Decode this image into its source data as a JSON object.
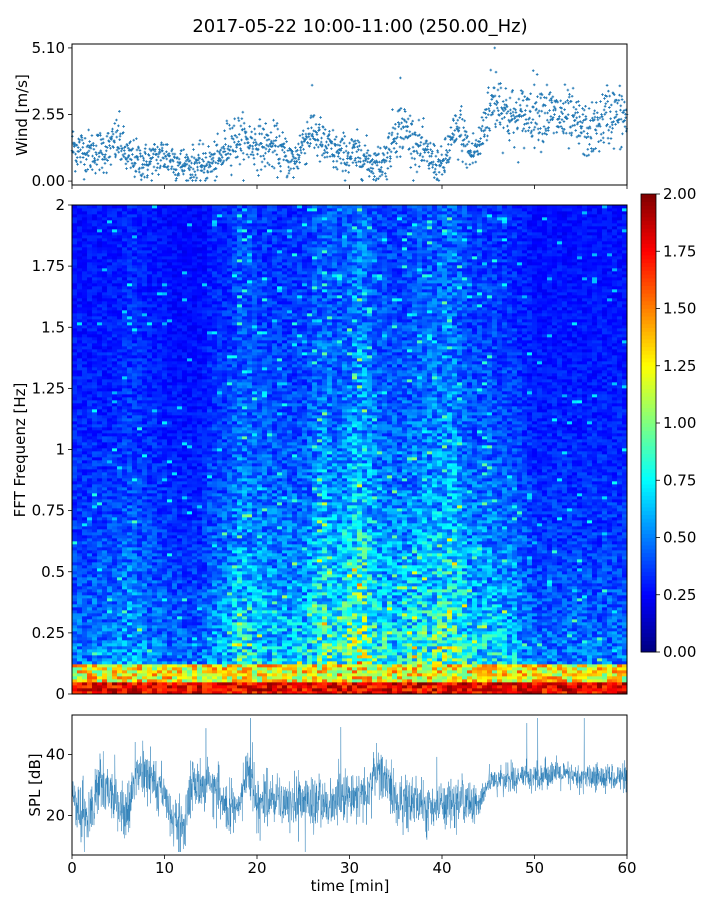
{
  "chart_data": [
    {
      "type": "scatter",
      "name": "wind",
      "title": "2017-05-22 10:00-11:00 (250.00_Hz)",
      "ylabel": "Wind [m/s]",
      "xlim": [
        0,
        60
      ],
      "ylim": [
        -0.15,
        5.25
      ],
      "yticks": [
        0.0,
        2.55,
        5.1
      ],
      "ytick_labels": [
        "0.00",
        "2.55",
        "5.10"
      ],
      "color": "#1f77b4",
      "envelope": {
        "x": [
          0,
          2,
          4,
          5,
          6,
          8,
          10,
          12,
          14,
          16,
          17,
          18,
          20,
          22,
          24,
          25,
          26,
          27,
          29,
          31,
          33,
          34,
          35,
          36,
          37,
          38,
          40,
          41,
          42,
          43,
          44,
          45,
          46,
          47,
          48,
          50,
          52,
          54,
          56,
          58,
          60
        ],
        "y": [
          1.3,
          1.1,
          1.2,
          1.6,
          0.9,
          0.7,
          1.0,
          0.6,
          0.6,
          0.8,
          1.6,
          1.6,
          1.4,
          1.3,
          0.7,
          1.5,
          2.0,
          1.4,
          1.0,
          1.0,
          0.6,
          0.9,
          2.0,
          2.0,
          1.5,
          1.1,
          0.5,
          1.5,
          2.0,
          1.0,
          1.3,
          2.8,
          3.2,
          2.6,
          2.3,
          2.8,
          2.5,
          2.3,
          1.8,
          2.6,
          2.4
        ]
      },
      "outliers": [
        {
          "x": 35.5,
          "y": 3.95
        },
        {
          "x": 45.7,
          "y": 5.1
        }
      ]
    },
    {
      "type": "heatmap",
      "name": "spectrogram",
      "ylabel": "FFT Frequenz [Hz]",
      "xlim": [
        0,
        60
      ],
      "ylim": [
        0,
        2
      ],
      "yticks": [
        0,
        0.25,
        0.5,
        0.75,
        1,
        1.25,
        1.5,
        1.75,
        2
      ],
      "ytick_labels": [
        "0",
        "0.25",
        "0.5",
        "0.75",
        "1",
        "1.25",
        "1.5",
        "1.75",
        "2"
      ],
      "colormap": "jet",
      "clim": [
        0.0,
        2.0
      ],
      "colorbar_ticks": [
        "0.00",
        "0.25",
        "0.50",
        "0.75",
        "1.00",
        "1.25",
        "1.50",
        "1.75",
        "2.00"
      ],
      "time_intensity": {
        "x": [
          0,
          5,
          6,
          8,
          10,
          12,
          14,
          15,
          17,
          18,
          20,
          22,
          25,
          27,
          29,
          31,
          33,
          35,
          38,
          40,
          41,
          43,
          45,
          48,
          50,
          55,
          60
        ],
        "level": [
          0.35,
          0.4,
          0.5,
          0.4,
          0.35,
          0.3,
          0.3,
          0.45,
          0.5,
          0.7,
          0.6,
          0.55,
          0.55,
          0.8,
          0.7,
          1.0,
          0.7,
          0.6,
          0.75,
          0.8,
          0.9,
          0.6,
          0.6,
          0.5,
          0.35,
          0.35,
          0.35
        ]
      }
    },
    {
      "type": "line",
      "name": "spl",
      "ylabel": "SPL [dB]",
      "xlabel": "time [min]",
      "xlim": [
        0,
        60
      ],
      "xticks": [
        0,
        10,
        20,
        30,
        40,
        50,
        60
      ],
      "ylim": [
        7,
        53
      ],
      "yticks": [
        20,
        40
      ],
      "color": "#1f77b4",
      "envelope": {
        "x": [
          0,
          1,
          2,
          3,
          4,
          5,
          6,
          7,
          8,
          9,
          10,
          11,
          12,
          13,
          14,
          15,
          16,
          17,
          18,
          19,
          20,
          22,
          24,
          26,
          28,
          30,
          31,
          32,
          33,
          34,
          35,
          37,
          39,
          41,
          43,
          44,
          45,
          47,
          50,
          52,
          55,
          58,
          60
        ],
        "y": [
          27,
          20,
          19,
          32,
          28,
          23,
          20,
          34,
          35,
          30,
          28,
          18,
          15,
          31,
          28,
          31,
          26,
          22,
          22,
          34,
          25,
          25,
          24,
          24,
          24,
          27,
          27,
          26,
          36,
          32,
          24,
          25,
          22,
          25,
          24,
          24,
          31,
          32,
          33,
          34,
          32,
          33,
          32
        ]
      }
    }
  ]
}
